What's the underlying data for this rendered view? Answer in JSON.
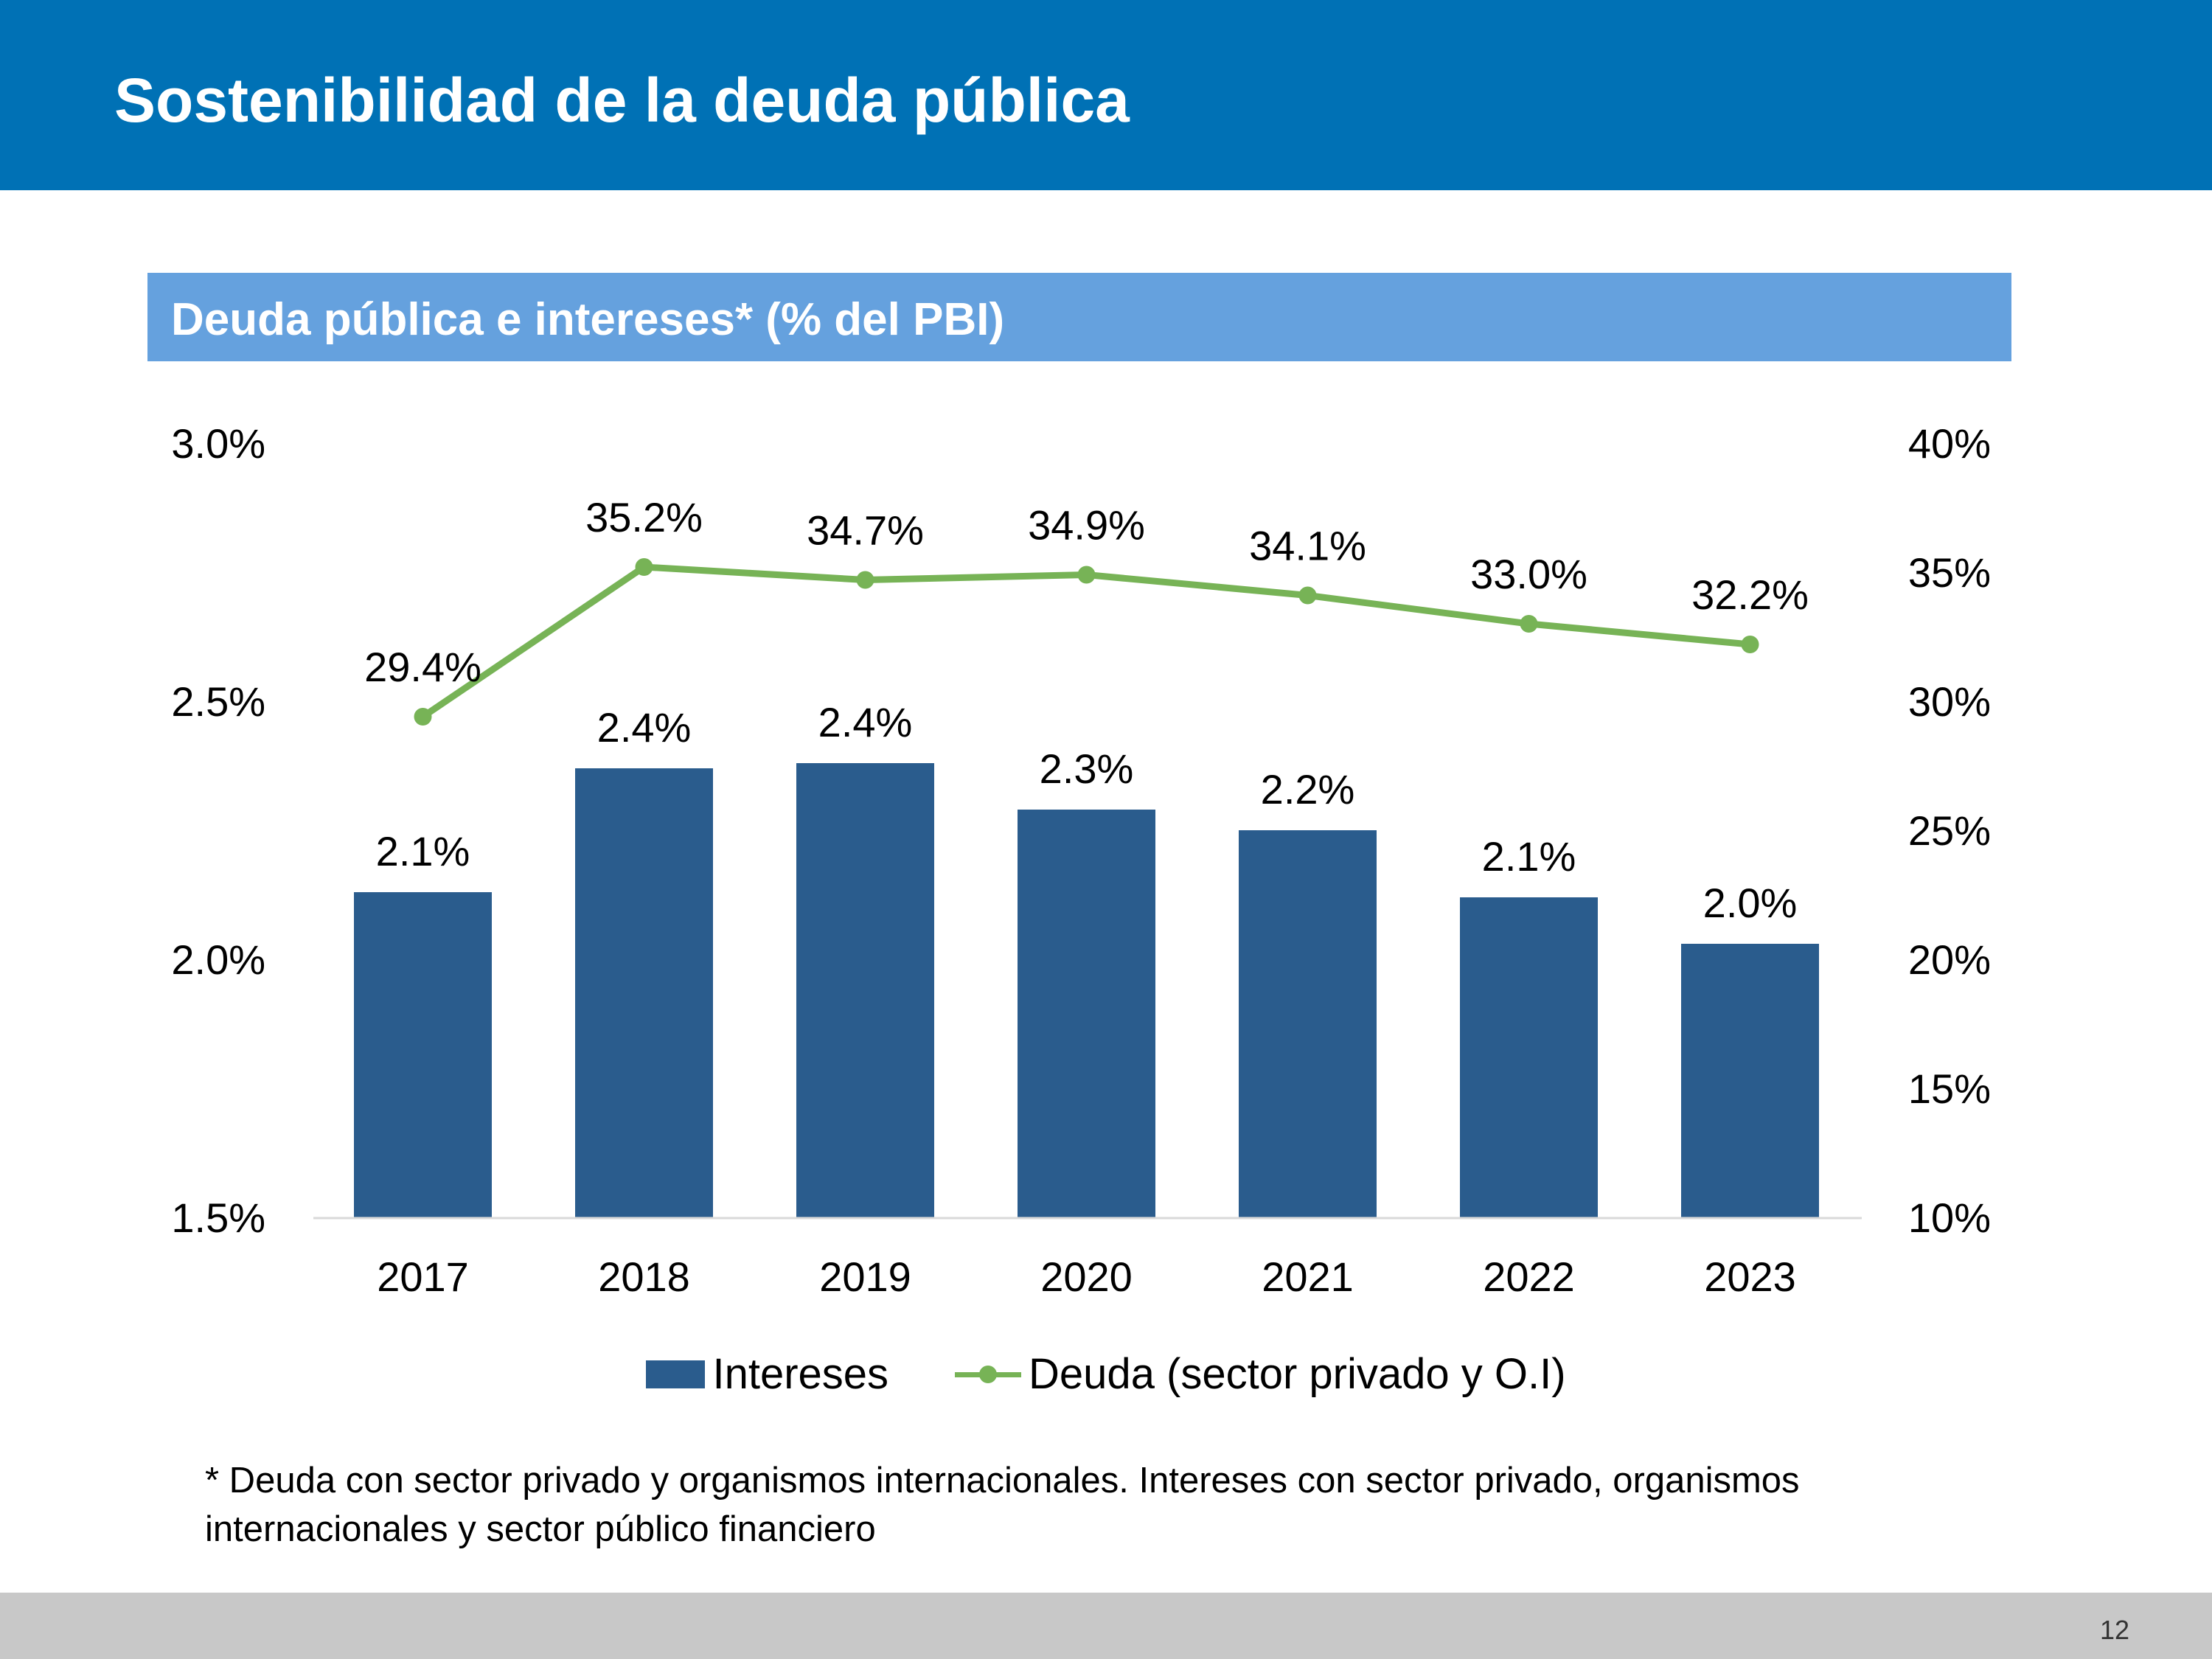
{
  "header": {
    "title": "Sostenibilidad de la deuda pública"
  },
  "colors": {
    "header_bg": "#0071b5",
    "subtitle_bg": "#65a1de",
    "bar": "#2a5c8d",
    "line": "#77b356",
    "baseline": "#d9d9d9",
    "footer_bg": "#c8c8c8"
  },
  "chart_data": {
    "type": "bar",
    "title": "Deuda pública e intereses* (% del PBI)",
    "categories": [
      "2017",
      "2018",
      "2019",
      "2020",
      "2021",
      "2022",
      "2023"
    ],
    "series": [
      {
        "name": "Intereses",
        "type": "bar",
        "axis": "left",
        "values": [
          2.13,
          2.37,
          2.38,
          2.29,
          2.25,
          2.12,
          2.03
        ],
        "labels": [
          "2.1%",
          "2.4%",
          "2.4%",
          "2.3%",
          "2.2%",
          "2.1%",
          "2.0%"
        ]
      },
      {
        "name": "Deuda (sector privado y O.I)",
        "type": "line",
        "axis": "right",
        "values": [
          29.4,
          35.2,
          34.7,
          34.9,
          34.1,
          33.0,
          32.2
        ],
        "labels": [
          "29.4%",
          "35.2%",
          "34.7%",
          "34.9%",
          "34.1%",
          "33.0%",
          "32.2%"
        ]
      }
    ],
    "y_left": {
      "min": 1.5,
      "max": 3.0,
      "ticks": [
        "3.0%",
        "2.5%",
        "2.0%",
        "1.5%"
      ],
      "tick_values": [
        3.0,
        2.5,
        2.0,
        1.5
      ]
    },
    "y_right": {
      "min": 10,
      "max": 40,
      "ticks": [
        "40%",
        "35%",
        "30%",
        "25%",
        "20%",
        "15%",
        "10%"
      ],
      "tick_values": [
        40,
        35,
        30,
        25,
        20,
        15,
        10
      ]
    },
    "grid": false,
    "legend_position": "bottom"
  },
  "legend": {
    "bar_label": "Intereses",
    "line_label": "Deuda (sector privado y O.I)"
  },
  "footnote": "* Deuda con sector privado y organismos internacionales. Intereses con sector privado, organismos internacionales y sector público financiero",
  "footer": {
    "page_number": "12"
  }
}
